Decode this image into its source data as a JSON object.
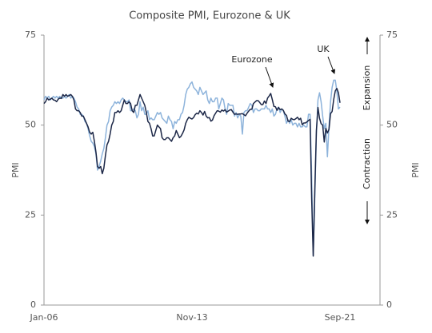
{
  "chart_data": {
    "type": "line",
    "title": "Composite PMI, Eurozone & UK",
    "y_label": "PMI",
    "y2_label": "PMI",
    "annotations": [
      "Eurozone",
      "UK",
      "Expansion",
      "Contraction"
    ],
    "categories": [
      "Jan-06",
      null,
      null,
      null,
      null,
      null,
      null,
      null,
      null,
      null,
      null,
      null,
      null,
      null,
      null,
      null,
      null,
      null,
      null,
      null,
      null,
      null,
      null,
      null,
      null,
      null,
      null,
      null,
      null,
      null,
      null,
      null,
      null,
      null,
      null,
      null,
      null,
      null,
      null,
      null,
      null,
      null,
      null,
      null,
      null,
      null,
      null,
      null,
      null,
      null,
      null,
      null,
      null,
      null,
      null,
      null,
      null,
      null,
      null,
      null,
      null,
      null,
      null,
      null,
      null,
      null,
      null,
      null,
      null,
      null,
      null,
      null,
      null,
      null,
      null,
      null,
      null,
      null,
      null,
      null,
      null,
      null,
      null,
      null,
      null,
      null,
      null,
      null,
      null,
      null,
      null,
      null,
      null,
      null,
      "Nov-13",
      null,
      null,
      null,
      null,
      null,
      null,
      null,
      null,
      null,
      null,
      null,
      null,
      null,
      null,
      null,
      null,
      null,
      null,
      null,
      null,
      null,
      null,
      null,
      null,
      null,
      null,
      null,
      null,
      null,
      null,
      null,
      null,
      null,
      null,
      null,
      null,
      null,
      null,
      null,
      null,
      null,
      null,
      null,
      null,
      null,
      null,
      null,
      null,
      null,
      null,
      null,
      null,
      null,
      null,
      null,
      null,
      null,
      null,
      null,
      null,
      null,
      null,
      null,
      null,
      null,
      null,
      null,
      null,
      null,
      null,
      null,
      null,
      null,
      null,
      null,
      null,
      null,
      null,
      null,
      null,
      null,
      null,
      null,
      null,
      null,
      null,
      null,
      null,
      null,
      null,
      null,
      null,
      null,
      "Sep-21"
    ],
    "series": [
      {
        "name": "Eurozone",
        "color": "#1c2747",
        "values": [
          56.0,
          56.5,
          57.5,
          57.0,
          57.2,
          57.5,
          57.0,
          56.9,
          56.5,
          57.2,
          57.5,
          57.4,
          58.5,
          58.0,
          58.5,
          58.0,
          58.2,
          58.5,
          58.0,
          57.0,
          54.5,
          54.0,
          54.0,
          53.5,
          52.5,
          52.5,
          51.5,
          50.5,
          49.5,
          48.0,
          47.5,
          48.0,
          45.5,
          42.5,
          38.5,
          38.0,
          38.5,
          36.5,
          38.0,
          41.5,
          44.5,
          45.5,
          47.5,
          50.0,
          51.0,
          53.5,
          53.5,
          54.0,
          53.5,
          54.0,
          55.5,
          57.0,
          56.0,
          56.0,
          56.5,
          56.0,
          54.0,
          53.5,
          55.5,
          55.5,
          57.0,
          58.5,
          57.5,
          56.5,
          55.5,
          53.5,
          51.0,
          50.5,
          49.0,
          47.0,
          47.0,
          48.5,
          50.0,
          49.5,
          49.0,
          46.5,
          46.0,
          46.0,
          46.5,
          46.5,
          46.0,
          45.5,
          46.5,
          47.0,
          48.5,
          47.5,
          46.5,
          46.9,
          47.7,
          48.7,
          50.5,
          51.5,
          52.2,
          51.9,
          51.7,
          52.1,
          52.9,
          53.3,
          53.1,
          54.0,
          53.5,
          52.8,
          53.8,
          52.5,
          52.0,
          52.1,
          51.1,
          51.4,
          52.6,
          53.3,
          54.0,
          53.9,
          53.6,
          54.2,
          53.9,
          54.3,
          53.6,
          53.9,
          54.2,
          54.3,
          53.6,
          53.0,
          53.1,
          53.0,
          53.1,
          53.1,
          53.2,
          52.9,
          52.6,
          53.3,
          53.9,
          54.4,
          54.4,
          56.0,
          56.4,
          56.8,
          56.8,
          56.3,
          55.7,
          55.7,
          56.7,
          56.0,
          57.5,
          58.1,
          58.8,
          57.1,
          55.2,
          55.1,
          54.1,
          54.9,
          54.3,
          54.5,
          54.1,
          53.1,
          52.7,
          51.1,
          51.0,
          51.9,
          51.6,
          51.5,
          51.8,
          52.2,
          51.5,
          51.9,
          50.1,
          50.6,
          50.6,
          50.9,
          51.3,
          51.6,
          29.7,
          13.6,
          31.9,
          48.5,
          54.9,
          51.9,
          50.4,
          50.0,
          45.3,
          49.1,
          47.8,
          48.8,
          53.2,
          53.8,
          57.1,
          59.5,
          60.2,
          59.0,
          56.2
        ]
      },
      {
        "name": "UK",
        "color": "#8db3db",
        "values": [
          57.0,
          58.0,
          57.5,
          58.0,
          57.0,
          57.5,
          58.0,
          57.5,
          58.0,
          57.5,
          58.0,
          57.5,
          57.5,
          58.0,
          57.5,
          58.0,
          58.5,
          57.5,
          58.0,
          57.5,
          56.5,
          55.0,
          54.5,
          53.0,
          53.0,
          52.5,
          51.0,
          50.5,
          49.0,
          47.0,
          45.5,
          45.0,
          44.0,
          42.0,
          37.5,
          38.5,
          40.0,
          42.0,
          43.5,
          46.5,
          50.0,
          51.0,
          54.0,
          55.0,
          55.5,
          56.5,
          56.0,
          56.5,
          56.0,
          57.0,
          57.5,
          57.0,
          56.5,
          56.5,
          57.0,
          54.0,
          54.0,
          54.5,
          54.0,
          52.0,
          53.0,
          56.5,
          54.0,
          55.0,
          53.0,
          53.0,
          54.0,
          51.5,
          52.0,
          51.5,
          51.5,
          52.5,
          53.5,
          53.0,
          53.5,
          52.0,
          51.5,
          51.0,
          50.5,
          52.5,
          51.5,
          51.0,
          49.0,
          51.0,
          50.5,
          51.5,
          51.5,
          53.0,
          53.5,
          55.5,
          58.5,
          60.0,
          60.5,
          61.5,
          62.0,
          60.5,
          60.0,
          59.5,
          58.5,
          60.5,
          59.5,
          58.5,
          59.0,
          59.5,
          57.0,
          56.0,
          57.5,
          56.5,
          56.5,
          57.5,
          57.5,
          54.5,
          56.0,
          57.5,
          57.0,
          54.5,
          53.0,
          56.0,
          55.5,
          55.5,
          55.5,
          52.5,
          53.5,
          52.0,
          53.0,
          52.5,
          47.5,
          53.5,
          54.0,
          54.0,
          55.0,
          56.0,
          55.5,
          53.5,
          54.5,
          54.5,
          54.0,
          54.0,
          54.5,
          54.5,
          54.5,
          55.5,
          54.5,
          54.5,
          53.5,
          54.5,
          52.5,
          53.0,
          54.5,
          55.0,
          53.5,
          54.5,
          54.0,
          52.5,
          50.5,
          51.5,
          50.5,
          51.5,
          50.0,
          50.5,
          50.5,
          49.5,
          50.5,
          49.5,
          49.5,
          50.0,
          49.5,
          49.5,
          53.0,
          53.0,
          36.0,
          13.8,
          30.0,
          47.5,
          57.0,
          59.0,
          56.5,
          52.5,
          49.0,
          50.5,
          41.2,
          49.5,
          56.5,
          60.5,
          62.5,
          62.5,
          59.5,
          54.5,
          55.0
        ]
      }
    ],
    "ylim": [
      0,
      75
    ],
    "yticks": [
      0,
      25,
      50,
      75
    ],
    "y2lim": [
      0,
      75
    ],
    "y2ticks": [
      0,
      25,
      50,
      75
    ]
  }
}
